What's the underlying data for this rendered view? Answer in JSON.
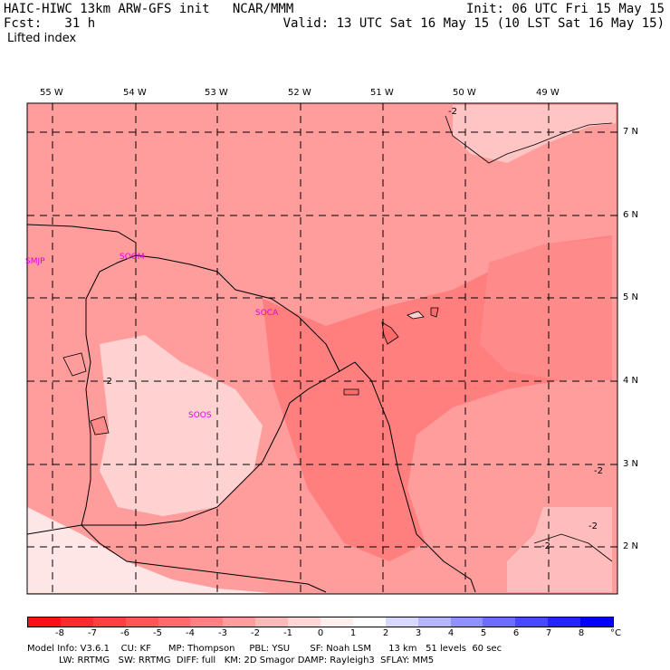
{
  "header": {
    "title_left": "HAIC-HIWC 13km ARW-GFS init   NCAR/MMM",
    "fcst": "Fcst:   31 h",
    "field": "Lifted index",
    "init": "Init: 06 UTC Fri 15 May 15",
    "valid": "Valid: 13 UTC Sat 16 May 15 (10 LST Sat 16 May 15)"
  },
  "axes": {
    "longitudes": [
      "55 W",
      "54 W",
      "53 W",
      "52 W",
      "51 W",
      "50 W",
      "49 W"
    ],
    "latitudes": [
      "7 N",
      "6 N",
      "5 N",
      "4 N",
      "3 N",
      "2 N"
    ]
  },
  "stations": [
    "SMJP",
    "SOGM",
    "SOCA",
    "SOOS"
  ],
  "contour_labels": [
    "-2",
    "-2",
    "-2",
    "-2",
    "-2"
  ],
  "colorbar": {
    "unit": "°C",
    "ticks": [
      "-8",
      "-7",
      "-6",
      "-5",
      "-4",
      "-3",
      "-2",
      "-1",
      "0",
      "1",
      "2",
      "3",
      "4",
      "5",
      "6",
      "7",
      "8"
    ],
    "colors": [
      "#ff1010",
      "#ff2a2a",
      "#ff4040",
      "#ff5656",
      "#ff6a6a",
      "#ff8080",
      "#ff9c9c",
      "#ffb8b8",
      "#ffd6d6",
      "#ffeeee",
      "#ffffff",
      "#d8d8ff",
      "#b4b4ff",
      "#9090ff",
      "#6c6cff",
      "#4848ff",
      "#2424ff",
      "#0000ff"
    ]
  },
  "footer": {
    "line1": "Model Info: V3.6.1    CU: KF      MP: Thompson     PBL: YSU       SF: Noah LSM      13 km   51 levels  60 sec",
    "line2": "           LW: RRTMG   SW: RRTMG  DIFF: full   KM: 2D Smagor DAMP: Rayleigh3  SFLAY: MM5"
  }
}
